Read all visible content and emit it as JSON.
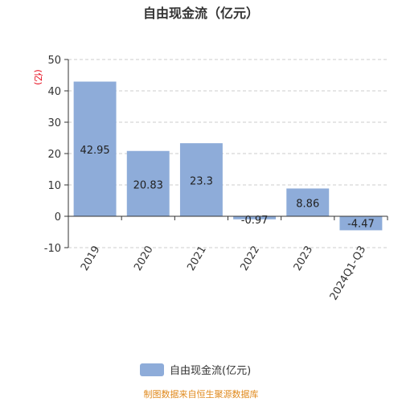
{
  "chart_data": {
    "type": "bar",
    "title": "自由现金流（亿元）",
    "unit_label": "(亿)",
    "categories": [
      "2019",
      "2020",
      "2021",
      "2022",
      "2023",
      "2024Q1-Q3"
    ],
    "series": [
      {
        "name": "自由现金流(亿元)",
        "values": [
          42.95,
          20.83,
          23.3,
          -0.97,
          8.86,
          -4.47
        ]
      }
    ],
    "data_labels": [
      "42.95",
      "20.83",
      "23.3",
      "-0.97",
      "8.86",
      "-4.47"
    ],
    "yticks": [
      -10,
      0,
      10,
      20,
      30,
      40,
      50
    ],
    "ylim": [
      -10,
      50
    ],
    "grid": true,
    "legend_position": "bottom",
    "colors": {
      "bar": "#8eacd9",
      "grid": "#cccccc",
      "axis": "#333333"
    }
  },
  "footer": {
    "source": "制图数据来自恒生聚源数据库"
  }
}
